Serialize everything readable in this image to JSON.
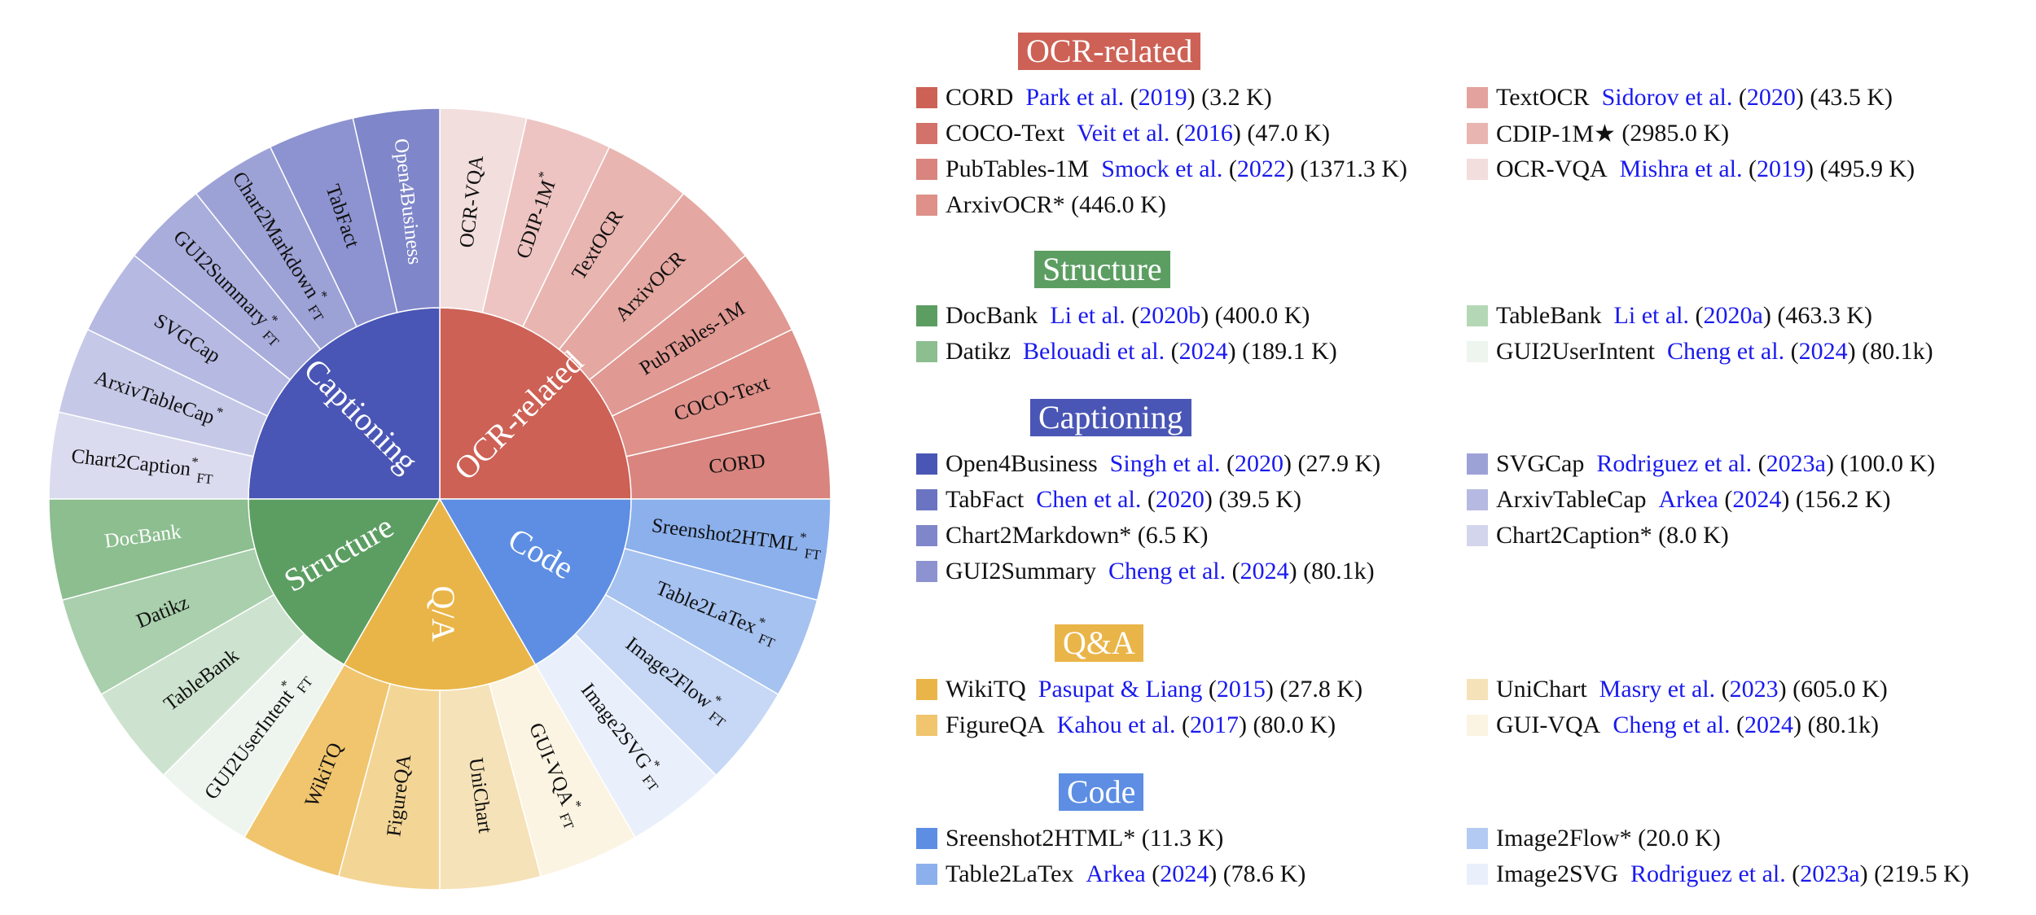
{
  "chart_data": {
    "type": "sunburst",
    "categories": [
      {
        "name": "OCR-related",
        "color": "#CD6155",
        "rotate_flip": false,
        "children": [
          {
            "label": "CORD",
            "sup": "",
            "color": "#D9847E",
            "value": 3.2
          },
          {
            "label": "COCO-Text",
            "sup": "",
            "color": "#DE9089",
            "value": 47.0
          },
          {
            "label": "PubTables-1M",
            "sup": "",
            "color": "#E19993",
            "value": 1371.3
          },
          {
            "label": "ArxivOCR",
            "sup": "",
            "color": "#E5A7A1",
            "value": 446.0
          },
          {
            "label": "TextOCR",
            "sup": "",
            "color": "#E9B5B1",
            "value": 43.5
          },
          {
            "label": "CDIP-1M",
            "sup": "*",
            "color": "#EDC4C1",
            "value": 2985.0
          },
          {
            "label": "OCR-VQA",
            "sup": "",
            "color": "#F2DEDD",
            "value": 495.9
          }
        ]
      },
      {
        "name": "Captioning",
        "color": "#4A56B5",
        "children": [
          {
            "label": "Open4Business",
            "sup": "",
            "color": "#7F86C9",
            "value": 27.9,
            "label_color": "#ffffff"
          },
          {
            "label": "TabFact",
            "sup": "",
            "color": "#8D93D0",
            "value": 39.5
          },
          {
            "label": "Chart2Markdown",
            "sup": "*FT",
            "color": "#9DA2D6",
            "value": 6.5
          },
          {
            "label": "GUI2Summary",
            "sup": "*FT",
            "color": "#A9ADDC",
            "value": 80.1
          },
          {
            "label": "SVGCap",
            "sup": "",
            "color": "#B6B9E1",
            "value": 100.0
          },
          {
            "label": "ArxivTableCap",
            "sup": "*",
            "color": "#C6C8E7",
            "value": 156.2
          },
          {
            "label": "Chart2Caption",
            "sup": "*FT",
            "color": "#DADBEF",
            "value": 8.0
          }
        ]
      },
      {
        "name": "Structure",
        "color": "#5C9E62",
        "children": [
          {
            "label": "DocBank",
            "sup": "",
            "color": "#8CBE8F",
            "value": 400.0,
            "label_color": "#ffffff"
          },
          {
            "label": "Datikz",
            "sup": "",
            "color": "#A9CFAC",
            "value": 189.1
          },
          {
            "label": "TableBank",
            "sup": "",
            "color": "#CDE3CF",
            "value": 463.3
          },
          {
            "label": "GUI2UserIntent",
            "sup": "*FT",
            "color": "#EEF5EE",
            "value": 80.1
          }
        ]
      },
      {
        "name": "Q/A",
        "color": "#EAB548",
        "children": [
          {
            "label": "WikiTQ",
            "sup": "",
            "color": "#F0C56E",
            "value": 27.8
          },
          {
            "label": "FigureQA",
            "sup": "",
            "color": "#F3D595",
            "value": 80.0
          },
          {
            "label": "UniChart",
            "sup": "",
            "color": "#F6E2B8",
            "value": 605.0
          },
          {
            "label": "GUI-VQA",
            "sup": "*FT",
            "color": "#FBF4E2",
            "value": 80.1
          }
        ]
      },
      {
        "name": "Code",
        "color": "#5D8EE3",
        "children": [
          {
            "label": "Sreenshot2HTML",
            "sup": "*FT",
            "color": "#8BB0EC",
            "value": 11.3
          },
          {
            "label": "Table2LaTex",
            "sup": "*FT",
            "color": "#A6C2F0",
            "value": 78.6
          },
          {
            "label": "Image2Flow",
            "sup": "*FT",
            "color": "#C6D8F5",
            "value": 20.0
          },
          {
            "label": "Image2SVG",
            "sup": "*FT",
            "color": "#EAF0FB",
            "value": 219.5
          }
        ]
      }
    ]
  },
  "legend": {
    "sections": [
      {
        "title": "OCR-related",
        "color": "#CD6155",
        "items": [
          {
            "name": "CORD",
            "cite_a": "Park et al.",
            "year": "2019",
            "count": "(3.2 K)",
            "color": "#CD6155"
          },
          {
            "name": "TextOCR",
            "cite_a": "Sidorov et al.",
            "year": "2020",
            "count": "(43.5 K)",
            "color": "#E3A29D"
          },
          {
            "name": "COCO-Text",
            "cite_a": "Veit et al.",
            "year": "2016",
            "count": "(47.0 K)",
            "color": "#D3726A"
          },
          {
            "name": "CDIP-1M★",
            "cite_a": "",
            "year": "",
            "count": "(2985.0 K)",
            "color": "#E9B5B1"
          },
          {
            "name": "PubTables-1M",
            "cite_a": "Smock et al.",
            "year": "2022",
            "count": "(1371.3 K)",
            "color": "#D9847E"
          },
          {
            "name": "OCR-VQA",
            "cite_a": "Mishra et al.",
            "year": "2019",
            "count": "(495.9 K)",
            "color": "#F2DEDD"
          },
          {
            "name": "ArxivOCR* (446.0 K)",
            "cite_a": "",
            "year": "",
            "count": "",
            "color": "#DE9089"
          }
        ]
      },
      {
        "title": "Structure",
        "color": "#5C9E62",
        "items": [
          {
            "name": "DocBank",
            "cite_a": "Li et al.",
            "year": "2020b",
            "count": "(400.0 K)",
            "color": "#5C9E62"
          },
          {
            "name": "TableBank",
            "cite_a": "Li et al.",
            "year": "2020a",
            "count": "(463.3 K)",
            "color": "#B4D8B6"
          },
          {
            "name": "Datikz",
            "cite_a": "Belouadi et al.",
            "year": "2024",
            "count": "(189.1 K)",
            "color": "#8CBE8F"
          },
          {
            "name": "GUI2UserIntent",
            "cite_a": "Cheng et al.",
            "year": "2024",
            "count": "(80.1k)",
            "color": "#EEF5EE"
          }
        ]
      },
      {
        "title": "Captioning",
        "color": "#4A56B5",
        "items": [
          {
            "name": "Open4Business",
            "cite_a": "Singh et al.",
            "year": "2020",
            "count": "(27.9 K)",
            "color": "#4A56B5"
          },
          {
            "name": "SVGCap",
            "cite_a": "Rodriguez et al.",
            "year": "2023a",
            "count": "(100.0 K)",
            "color": "#9DA2D6"
          },
          {
            "name": "TabFact",
            "cite_a": "Chen et al.",
            "year": "2020",
            "count": "(39.5 K)",
            "color": "#6A74C2"
          },
          {
            "name": "ArxivTableCap",
            "cite_a": "Arkea",
            "year": "2024",
            "count": "(156.2 K)",
            "color": "#B6B9E1"
          },
          {
            "name": "Chart2Markdown* (6.5 K)",
            "cite_a": "",
            "year": "",
            "count": "",
            "color": "#7F86C9"
          },
          {
            "name": "Chart2Caption* (8.0 K)",
            "cite_a": "",
            "year": "",
            "count": "",
            "color": "#D3D5EC"
          },
          {
            "name": "GUI2Summary",
            "cite_a": "Cheng et al.",
            "year": "2024",
            "count": "(80.1k)",
            "color": "#8D93D0"
          }
        ]
      },
      {
        "title": "Q&A",
        "color": "#EAB548",
        "items": [
          {
            "name": "WikiTQ",
            "cite_a": "Pasupat & Liang",
            "year": "2015",
            "count": "(27.8 K)",
            "color": "#EAB548"
          },
          {
            "name": "UniChart",
            "cite_a": "Masry et al.",
            "year": "2023",
            "count": "(605.0 K)",
            "color": "#F6E2B8"
          },
          {
            "name": "FigureQA",
            "cite_a": "Kahou et al.",
            "year": "2017",
            "count": "(80.0 K)",
            "color": "#F0C56E"
          },
          {
            "name": "GUI-VQA",
            "cite_a": "Cheng et al.",
            "year": "2024",
            "count": "(80.1k)",
            "color": "#FBF4E2"
          }
        ]
      },
      {
        "title": "Code",
        "color": "#5D8EE3",
        "items": [
          {
            "name": "Sreenshot2HTML* (11.3 K)",
            "cite_a": "",
            "year": "",
            "count": "",
            "color": "#5D8EE3"
          },
          {
            "name": "Image2Flow* (20.0 K)",
            "cite_a": "",
            "year": "",
            "count": "",
            "color": "#B3CBF2"
          },
          {
            "name": "Table2LaTex",
            "cite_a": "Arkea",
            "year": "2024",
            "count": "(78.6 K)",
            "color": "#8BB0EC"
          },
          {
            "name": "Image2SVG",
            "cite_a": "Rodriguez et al.",
            "year": "2023a",
            "count": "(219.5 K)",
            "color": "#EAF0FB"
          }
        ]
      }
    ]
  }
}
